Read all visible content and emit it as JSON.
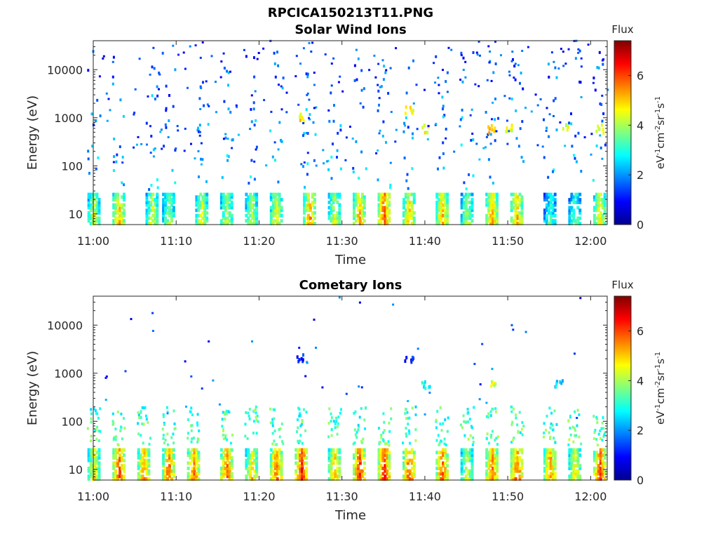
{
  "figure": {
    "title": "RPCICA150213T11.PNG"
  },
  "chart_data": [
    {
      "type": "heatmap",
      "title": "Solar Wind Ions",
      "xlabel": "Time",
      "ylabel": "Energy (eV)",
      "x_ticks": [
        "11:00",
        "11:10",
        "11:20",
        "11:30",
        "11:40",
        "11:50",
        "12:00"
      ],
      "xlim": [
        "11:00",
        "12:02"
      ],
      "y_scale": "log",
      "y_ticks": [
        "10",
        "100",
        "1000",
        "10000"
      ],
      "ylim": [
        6,
        40000
      ],
      "colorbar": {
        "title": "Flux",
        "label": "eV-1cm-2sr-1s-1",
        "ticks": [
          "0",
          "2",
          "4",
          "6"
        ],
        "range": [
          0,
          7.4
        ],
        "colormap": "jet"
      },
      "low_energy_bursts": [
        {
          "t": "11:00",
          "level": 4.5
        },
        {
          "t": "11:03",
          "level": 5.3
        },
        {
          "t": "11:07",
          "level": 4.6
        },
        {
          "t": "11:09",
          "level": 4.2
        },
        {
          "t": "11:13",
          "level": 4.7
        },
        {
          "t": "11:16",
          "level": 4.4
        },
        {
          "t": "11:19",
          "level": 4.5
        },
        {
          "t": "11:22",
          "level": 4.8
        },
        {
          "t": "11:26",
          "level": 5.6
        },
        {
          "t": "11:29",
          "level": 4.6
        },
        {
          "t": "11:32",
          "level": 5.5
        },
        {
          "t": "11:35",
          "level": 6.2
        },
        {
          "t": "11:38",
          "level": 5.2
        },
        {
          "t": "11:42",
          "level": 5.4
        },
        {
          "t": "11:45",
          "level": 4.3
        },
        {
          "t": "11:48",
          "level": 5.5
        },
        {
          "t": "11:51",
          "level": 5.3
        },
        {
          "t": "11:55",
          "level": 3.5
        },
        {
          "t": "11:58",
          "level": 3.8
        },
        {
          "t": "12:01",
          "level": 5.0
        }
      ],
      "keV_features": [
        {
          "t": "11:25",
          "energy": 1000,
          "level": 4.8
        },
        {
          "t": "11:38",
          "energy": 1500,
          "level": 4.5
        },
        {
          "t": "11:40",
          "energy": 600,
          "level": 4.5
        },
        {
          "t": "11:48",
          "energy": 600,
          "level": 5.0
        },
        {
          "t": "11:50",
          "energy": 600,
          "level": 4.5
        },
        {
          "t": "11:57",
          "energy": 600,
          "level": 4.3
        },
        {
          "t": "12:01",
          "energy": 600,
          "level": 4.2
        }
      ]
    },
    {
      "type": "heatmap",
      "title": "Cometary Ions",
      "xlabel": "Time",
      "ylabel": "Energy (eV)",
      "x_ticks": [
        "11:00",
        "11:10",
        "11:20",
        "11:30",
        "11:40",
        "11:50",
        "12:00"
      ],
      "xlim": [
        "11:00",
        "12:02"
      ],
      "y_scale": "log",
      "y_ticks": [
        "10",
        "100",
        "1000",
        "10000"
      ],
      "ylim": [
        6,
        40000
      ],
      "colorbar": {
        "title": "Flux",
        "label": "eV-1cm-2sr-1s-1",
        "ticks": [
          "0",
          "2",
          "4",
          "6"
        ],
        "range": [
          0,
          7.4
        ],
        "colormap": "jet"
      },
      "low_energy_bursts": [
        {
          "t": "11:00",
          "level": 5.0
        },
        {
          "t": "11:03",
          "level": 6.2
        },
        {
          "t": "11:06",
          "level": 5.8
        },
        {
          "t": "11:09",
          "level": 6.0
        },
        {
          "t": "11:12",
          "level": 5.9
        },
        {
          "t": "11:16",
          "level": 6.0
        },
        {
          "t": "11:19",
          "level": 5.2
        },
        {
          "t": "11:22",
          "level": 6.0
        },
        {
          "t": "11:25",
          "level": 6.6
        },
        {
          "t": "11:29",
          "level": 5.5
        },
        {
          "t": "11:32",
          "level": 6.4
        },
        {
          "t": "11:35",
          "level": 6.6
        },
        {
          "t": "11:38",
          "level": 6.2
        },
        {
          "t": "11:42",
          "level": 6.1
        },
        {
          "t": "11:45",
          "level": 4.6
        },
        {
          "t": "11:48",
          "level": 6.0
        },
        {
          "t": "11:51",
          "level": 6.2
        },
        {
          "t": "11:55",
          "level": 5.8
        },
        {
          "t": "11:58",
          "level": 5.0
        },
        {
          "t": "12:01",
          "level": 6.4
        }
      ],
      "keV_features": [
        {
          "t": "11:25",
          "energy": 2000,
          "level": 1.2
        },
        {
          "t": "11:38",
          "energy": 1800,
          "level": 1.3
        },
        {
          "t": "11:40",
          "energy": 600,
          "level": 3.0
        },
        {
          "t": "11:48",
          "energy": 600,
          "level": 4.3
        },
        {
          "t": "11:56",
          "energy": 600,
          "level": 2.4
        }
      ]
    }
  ]
}
